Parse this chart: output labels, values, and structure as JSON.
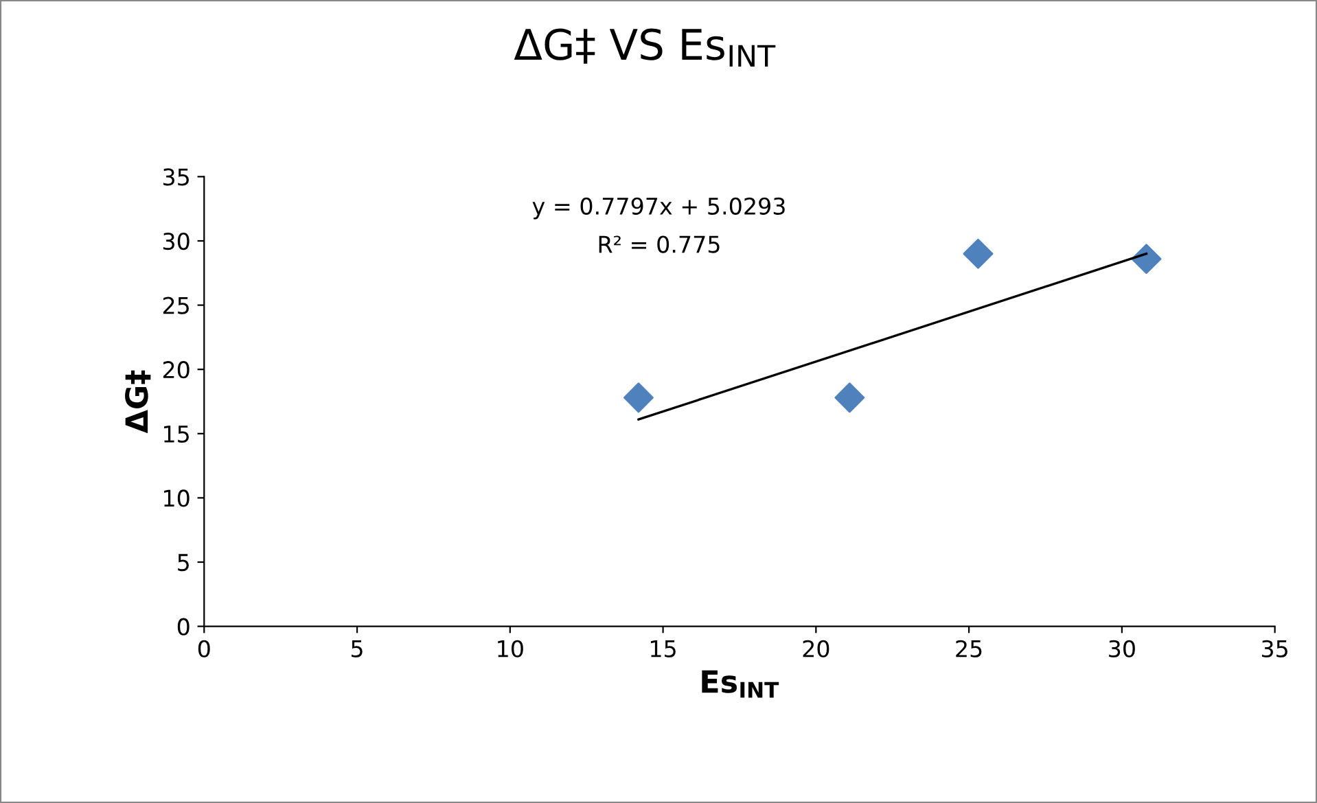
{
  "chart_data": {
    "type": "scatter",
    "title": "ΔG‡ VS Es$_{INT}$",
    "xlabel": "Es$_{INT}$",
    "ylabel": "ΔG‡",
    "series": [
      {
        "color": "#4f81bd",
        "marker": "diamond",
        "x": [
          14.2,
          21.1,
          25.3,
          30.8
        ],
        "values": [
          17.8,
          17.8,
          29.0,
          28.6
        ]
      },
      {
        "type": "line",
        "color": "#000000",
        "marker": "none",
        "line_style": "solid",
        "x": [
          14.2,
          30.8
        ],
        "values": [
          16.1,
          29.0
        ]
      }
    ],
    "annotations": [
      "y = 0.7797x + 5.0293",
      "R² = 0.775"
    ],
    "xlim": [
      0,
      35
    ],
    "xticks": [
      0,
      5,
      10,
      15,
      20,
      25,
      30,
      35
    ],
    "ylim": [
      0,
      35
    ],
    "yticks": [
      0,
      5,
      10,
      15,
      20,
      25,
      30,
      35
    ],
    "grid": false,
    "legend": false
  }
}
